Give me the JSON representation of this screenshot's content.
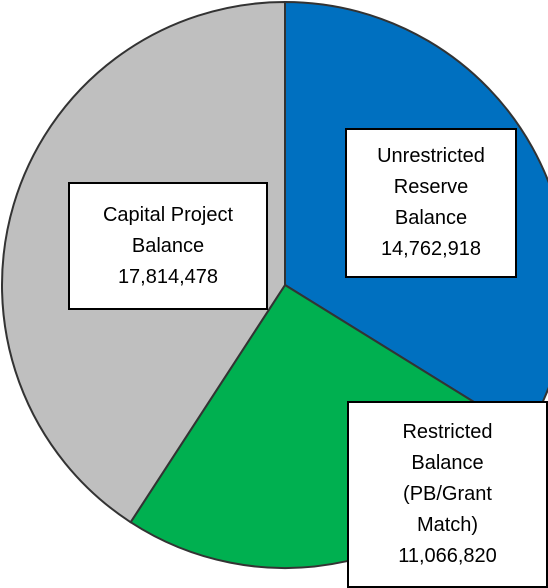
{
  "chart_data": {
    "type": "pie",
    "categories": [
      "Unrestricted\nReserve\nBalance",
      "Restricted\nBalance\n(PB/Grant\nMatch)",
      "Capital Project\nBalance"
    ],
    "values": [
      14762918,
      11066820,
      17814478
    ],
    "value_labels": [
      "14,762,918",
      "11,066,820",
      "17,814,478"
    ],
    "colors": [
      "#0070c0",
      "#00b050",
      "#bfbfbf"
    ],
    "start_angle": 0,
    "direction": "clockwise"
  }
}
